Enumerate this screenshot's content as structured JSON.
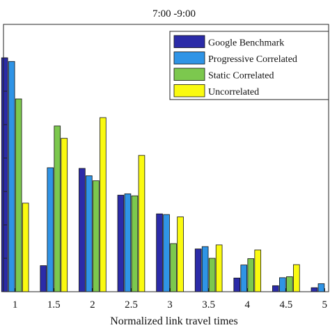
{
  "chart_data": {
    "type": "bar",
    "title": "7:00 -9:00",
    "xlabel": "Normalized link travel times",
    "ylabel": "",
    "categories": [
      "1",
      "1.5",
      "2",
      "2.5",
      "3",
      "3.5",
      "4",
      "4.5",
      "5"
    ],
    "xlim": [
      0.85,
      5.05
    ],
    "ylim": [
      0,
      0.8
    ],
    "legend_position": "top-right",
    "grid": false,
    "series": [
      {
        "name": "Google Benchmark",
        "color": "#2b2ba8",
        "values": [
          0.7,
          0.078,
          0.369,
          0.289,
          0.233,
          0.128,
          0.041,
          0.018,
          0.012
        ]
      },
      {
        "name": "Progressive Correlated",
        "color": "#2f94e6",
        "values": [
          0.689,
          0.371,
          0.347,
          0.293,
          0.231,
          0.135,
          0.08,
          0.042,
          0.024
        ]
      },
      {
        "name": "Static Correlated",
        "color": "#7cc84e",
        "values": [
          0.577,
          0.496,
          0.332,
          0.287,
          0.144,
          0.1,
          0.099,
          0.045,
          0.03
        ]
      },
      {
        "name": "Uncorrelated",
        "color": "#fafa10",
        "values": [
          0.265,
          0.459,
          0.521,
          0.408,
          0.224,
          0.14,
          0.125,
          0.081,
          0.0
        ]
      }
    ]
  }
}
